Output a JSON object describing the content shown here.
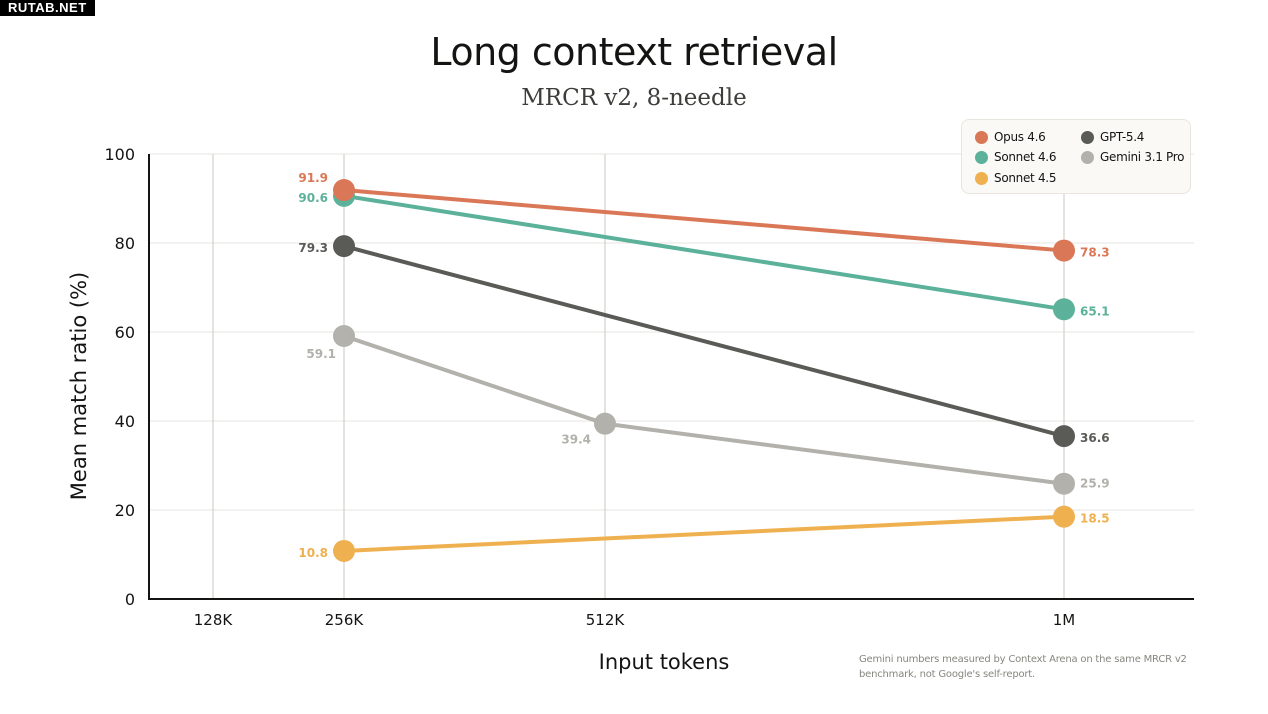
{
  "watermark": "RUTAB.NET",
  "chart_data": {
    "type": "line",
    "title": "Long context retrieval",
    "subtitle": "MRCR v2, 8-needle",
    "xlabel": "Input tokens",
    "ylabel": "Mean match ratio (%)",
    "ylim": [
      0,
      100
    ],
    "yticks": [
      0,
      20,
      40,
      60,
      80,
      100
    ],
    "categories": [
      "128K",
      "256K",
      "512K",
      "1M"
    ],
    "grid": true,
    "legend_position": "top-right",
    "series": [
      {
        "name": "Opus 4.6",
        "color": "#d97757",
        "points": [
          {
            "x": "256K",
            "y": 91.9
          },
          {
            "x": "1M",
            "y": 78.3
          }
        ]
      },
      {
        "name": "Sonnet 4.6",
        "color": "#5bb199",
        "points": [
          {
            "x": "256K",
            "y": 90.6
          },
          {
            "x": "1M",
            "y": 65.1
          }
        ]
      },
      {
        "name": "Sonnet 4.5",
        "color": "#efb04f",
        "points": [
          {
            "x": "256K",
            "y": 10.8
          },
          {
            "x": "1M",
            "y": 18.5
          }
        ]
      },
      {
        "name": "GPT-5.4",
        "color": "#5a5a57",
        "points": [
          {
            "x": "256K",
            "y": 79.3
          },
          {
            "x": "1M",
            "y": 36.6
          }
        ]
      },
      {
        "name": "Gemini 3.1 Pro",
        "color": "#b2b1ab",
        "points": [
          {
            "x": "256K",
            "y": 59.1
          },
          {
            "x": "512K",
            "y": 39.4
          },
          {
            "x": "1M",
            "y": 25.9
          }
        ]
      }
    ],
    "footnote": "Gemini numbers measured by Context Arena on the same MRCR v2 benchmark, not Google's self-report."
  },
  "legend": [
    {
      "label": "Opus 4.6",
      "color": "#d97757"
    },
    {
      "label": "Sonnet 4.6",
      "color": "#5bb199"
    },
    {
      "label": "Sonnet 4.5",
      "color": "#efb04f"
    },
    {
      "label": "GPT-5.4",
      "color": "#5a5a57"
    },
    {
      "label": "Gemini 3.1 Pro",
      "color": "#b2b1ab"
    }
  ]
}
